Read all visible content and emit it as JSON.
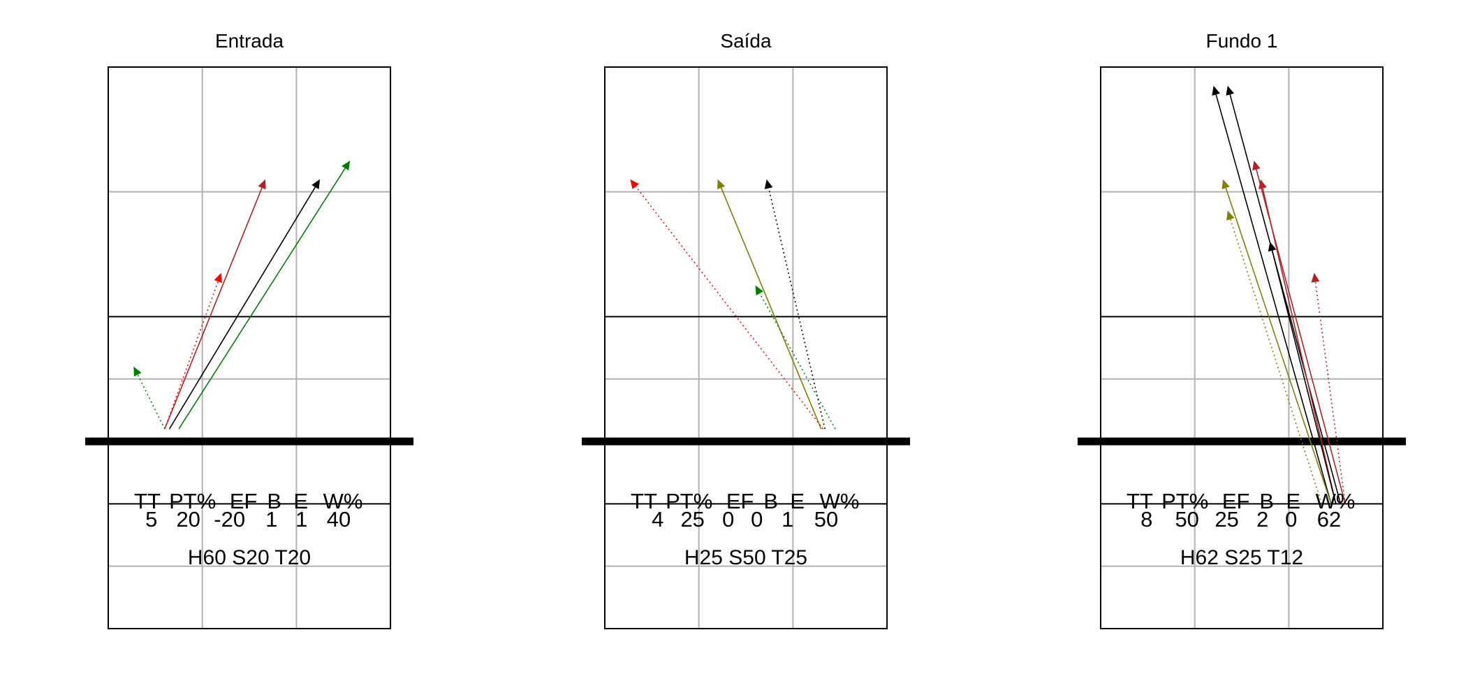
{
  "panels": [
    {
      "title": "Entrada",
      "stats_header": [
        "TT",
        "PT%",
        "EF",
        "B",
        "E",
        "W%"
      ],
      "stats_values": [
        "5",
        "20",
        "-20",
        "1",
        "1",
        "40"
      ],
      "zones": "H60 S20 T20",
      "arrows": [
        {
          "from": [
            0.6,
            3.2
          ],
          "to": [
            1.67,
            7.2
          ],
          "color": "#b22222",
          "style": "solid"
        },
        {
          "from": [
            0.65,
            3.2
          ],
          "to": [
            2.25,
            7.2
          ],
          "color": "#000000",
          "style": "solid"
        },
        {
          "from": [
            0.75,
            3.2
          ],
          "to": [
            2.57,
            7.5
          ],
          "color": "#008000",
          "style": "solid"
        },
        {
          "from": [
            0.6,
            3.2
          ],
          "to": [
            1.2,
            5.7
          ],
          "color": "#ff0000",
          "style": "dotted"
        },
        {
          "from": [
            0.6,
            3.2
          ],
          "to": [
            0.27,
            4.2
          ],
          "color": "#008000",
          "style": "dotted"
        }
      ]
    },
    {
      "title": "Saída",
      "stats_header": [
        "TT",
        "PT%",
        "EF",
        "B",
        "E",
        "W%"
      ],
      "stats_values": [
        "4",
        "25",
        "0",
        "0",
        "1",
        "50"
      ],
      "zones": "H25 S50 T25",
      "arrows": [
        {
          "from": [
            2.3,
            3.2
          ],
          "to": [
            1.2,
            7.2
          ],
          "color": "#808000",
          "style": "solid"
        },
        {
          "from": [
            2.32,
            3.2
          ],
          "to": [
            0.27,
            7.2
          ],
          "color": "#ff0000",
          "style": "dotted"
        },
        {
          "from": [
            2.34,
            3.2
          ],
          "to": [
            1.72,
            7.2
          ],
          "color": "#000000",
          "style": "dotted"
        },
        {
          "from": [
            2.45,
            3.2
          ],
          "to": [
            1.6,
            5.5
          ],
          "color": "#008000",
          "style": "dotted"
        }
      ]
    },
    {
      "title": "Fundo 1",
      "stats_header": [
        "TT",
        "PT%",
        "EF",
        "B",
        "E",
        "W%"
      ],
      "stats_values": [
        "8",
        "50",
        "25",
        "2",
        "0",
        "62"
      ],
      "zones": "H62 S25 T12",
      "arrows": [
        {
          "from": [
            2.45,
            2.0
          ],
          "to": [
            1.2,
            8.7
          ],
          "color": "#000000",
          "style": "solid"
        },
        {
          "from": [
            2.55,
            2.0
          ],
          "to": [
            1.35,
            8.7
          ],
          "color": "#000000",
          "style": "solid"
        },
        {
          "from": [
            2.6,
            2.0
          ],
          "to": [
            1.63,
            7.5
          ],
          "color": "#b22222",
          "style": "solid"
        },
        {
          "from": [
            2.45,
            2.0
          ],
          "to": [
            1.3,
            7.2
          ],
          "color": "#808000",
          "style": "solid"
        },
        {
          "from": [
            2.5,
            2.0
          ],
          "to": [
            1.7,
            7.2
          ],
          "color": "#b22222",
          "style": "solid"
        },
        {
          "from": [
            2.5,
            2.0
          ],
          "to": [
            1.8,
            6.2
          ],
          "color": "#000000",
          "style": "solid"
        },
        {
          "from": [
            2.35,
            2.0
          ],
          "to": [
            1.35,
            6.7
          ],
          "color": "#808000",
          "style": "dotted"
        },
        {
          "from": [
            2.6,
            2.0
          ],
          "to": [
            2.27,
            5.7
          ],
          "color": "#b22222",
          "style": "dotted"
        }
      ]
    }
  ]
}
